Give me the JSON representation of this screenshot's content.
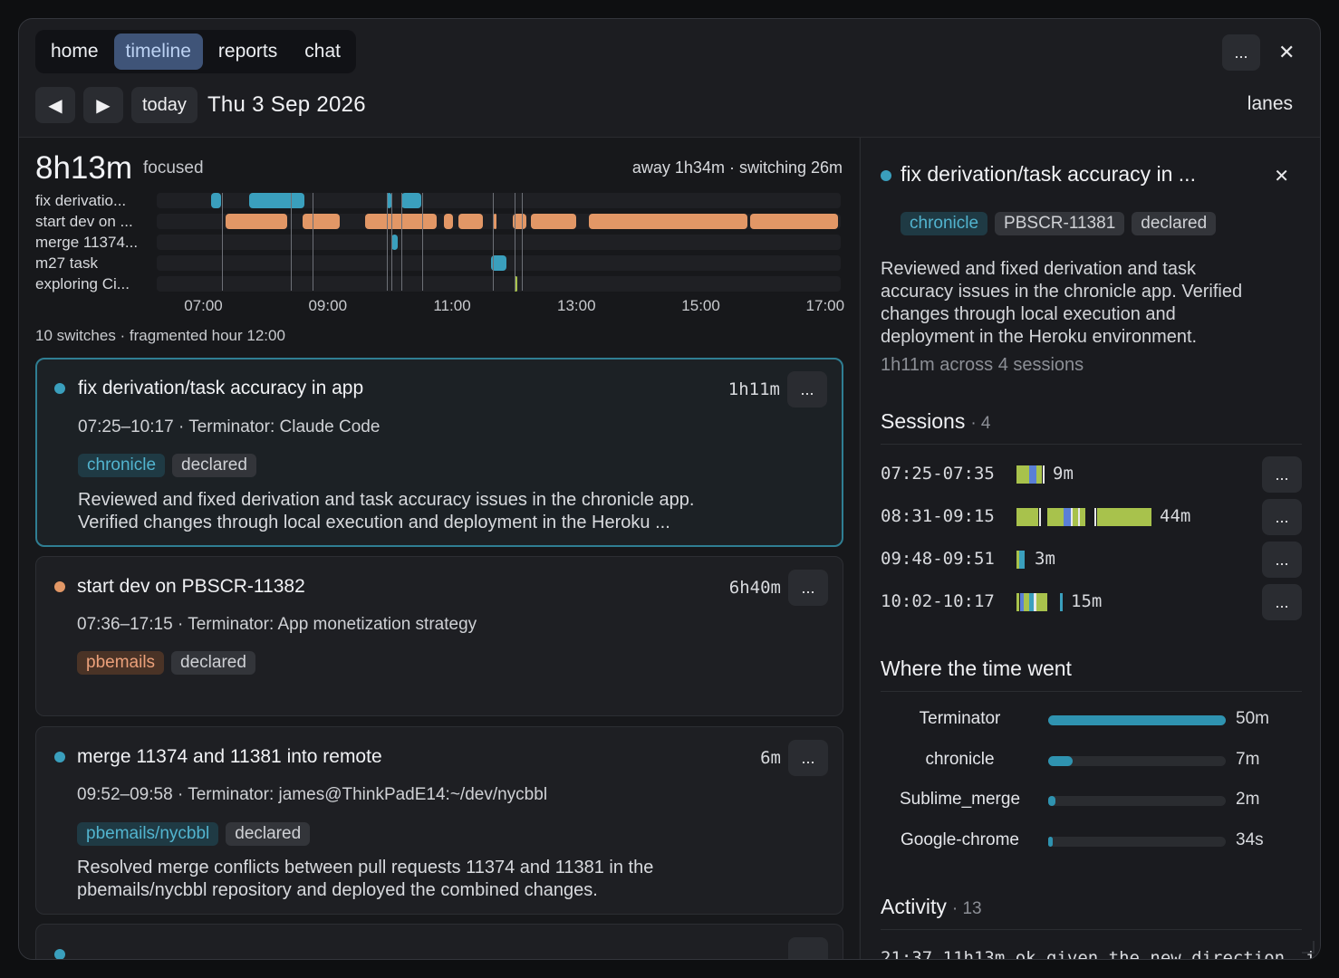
{
  "tabs": [
    {
      "label": "home",
      "active": false
    },
    {
      "label": "timeline",
      "active": true
    },
    {
      "label": "reports",
      "active": false
    },
    {
      "label": "chat",
      "active": false
    }
  ],
  "header": {
    "more_label": "...",
    "close_label": "✕"
  },
  "nav": {
    "prev_icon": "◀",
    "next_icon": "▶",
    "today_label": "today",
    "date": "Thu 3 Sep 2026",
    "lanes_label": "lanes"
  },
  "summary": {
    "focused_total": "8h13m",
    "focused_label": "focused",
    "away_switching": "away 1h34m · switching 26m",
    "switch_summary": "10 switches · fragmented hour 12:00"
  },
  "timeline": {
    "start_hour": 6.25,
    "end_hour": 17.25,
    "lanes": [
      {
        "label": "fix derivatio...",
        "color": "#3a9fbd",
        "segments": [
          [
            7.12,
            7.28
          ],
          [
            7.73,
            8.63
          ],
          [
            9.95,
            10.03
          ],
          [
            10.18,
            10.5
          ]
        ]
      },
      {
        "label": "start dev on ...",
        "color": "#e29766",
        "segments": [
          [
            7.35,
            8.35
          ],
          [
            8.6,
            9.2
          ],
          [
            9.6,
            10.75
          ],
          [
            10.87,
            11.02
          ],
          [
            11.1,
            11.5
          ],
          [
            11.67,
            11.72
          ],
          [
            11.97,
            12.2
          ],
          [
            12.27,
            13.0
          ],
          [
            13.2,
            15.75
          ],
          [
            15.8,
            17.2
          ]
        ]
      },
      {
        "label": "merge 11374...",
        "color": "#3a9fbd",
        "segments": [
          [
            10.03,
            10.12
          ]
        ]
      },
      {
        "label": "m27 task",
        "color": "#3a9fbd",
        "segments": [
          [
            11.62,
            11.88
          ]
        ]
      },
      {
        "label": "exploring Ci...",
        "color": "#a8c24c",
        "segments": [
          [
            12.0,
            12.05
          ]
        ]
      }
    ],
    "switch_markers": [
      7.3,
      8.4,
      8.75,
      9.95,
      10.03,
      10.18,
      10.52,
      11.65,
      12.0,
      12.12
    ],
    "ticks": [
      "07:00",
      "09:00",
      "11:00",
      "13:00",
      "15:00",
      "17:00"
    ]
  },
  "cards": [
    {
      "title": "fix derivation/task accuracy in app",
      "duration": "1h11m",
      "meta": "07:25–10:17 · Terminator: Claude Code",
      "dot_color": "#3a9fbd",
      "tags": [
        {
          "label": "chronicle",
          "style": "teal"
        },
        {
          "label": "declared",
          "style": "grey"
        }
      ],
      "desc_line1": "Reviewed and fixed derivation and task accuracy issues in the chronicle app.",
      "desc_line2": "Verified changes through local execution and deployment in the Heroku ...",
      "more_label": "..."
    },
    {
      "title": "start dev on PBSCR-11382",
      "duration": "6h40m",
      "meta": "07:36–17:15 · Terminator: App monetization strategy",
      "dot_color": "#e29766",
      "tags": [
        {
          "label": "pbemails",
          "style": "orange"
        },
        {
          "label": "declared",
          "style": "grey"
        }
      ],
      "more_label": "..."
    },
    {
      "title": "merge 11374 and 11381 into remote",
      "duration": "6m",
      "meta": "09:52–09:58 · Terminator: james@ThinkPadE14:~/dev/nycbbl",
      "dot_color": "#3a9fbd",
      "tags": [
        {
          "label": "pbemails/nycbbl",
          "style": "teal"
        },
        {
          "label": "declared",
          "style": "grey"
        }
      ],
      "desc_line1": "Resolved merge conflicts between pull requests 11374 and 11381 in the",
      "desc_line2": "pbemails/nycbbl repository and deployed the combined changes.",
      "more_label": "..."
    }
  ],
  "detail": {
    "title": "fix derivation/task accuracy in ...",
    "close_label": "✕",
    "tags": [
      {
        "label": "chronicle",
        "style": "teal"
      },
      {
        "label": "PBSCR-11381",
        "style": "grey"
      },
      {
        "label": "declared",
        "style": "grey"
      }
    ],
    "desc_lines": [
      "Reviewed and fixed derivation and task",
      "accuracy issues in the chronicle app. Verified",
      "changes through local execution and",
      "deployment in the Heroku environment."
    ],
    "sub": "1h11m across 4 sessions",
    "sessions_heading": "Sessions",
    "sessions_count": "· 4",
    "sessions": [
      {
        "time": "07:25-07:35",
        "duration": "9m"
      },
      {
        "time": "08:31-09:15",
        "duration": "44m"
      },
      {
        "time": "09:48-09:51",
        "duration": "3m"
      },
      {
        "time": "10:02-10:17",
        "duration": "15m"
      }
    ],
    "where_heading": "Where the time went",
    "where": [
      {
        "name": "Terminator",
        "value": "50m",
        "fraction": 1.0
      },
      {
        "name": "chronicle",
        "value": "7m",
        "fraction": 0.14
      },
      {
        "name": "Sublime_merge",
        "value": "2m",
        "fraction": 0.04
      },
      {
        "name": "Google-chrome",
        "value": "34s",
        "fraction": 0.012
      }
    ],
    "activity_heading": "Activity",
    "activity_count": "· 13",
    "activity_first": "21:37   11h13m  ok given the new direction, i"
  },
  "colors": {
    "accent": "#3a9fbd",
    "orange": "#e29766",
    "green": "#a8c24c",
    "blue": "#5a7fd6"
  }
}
